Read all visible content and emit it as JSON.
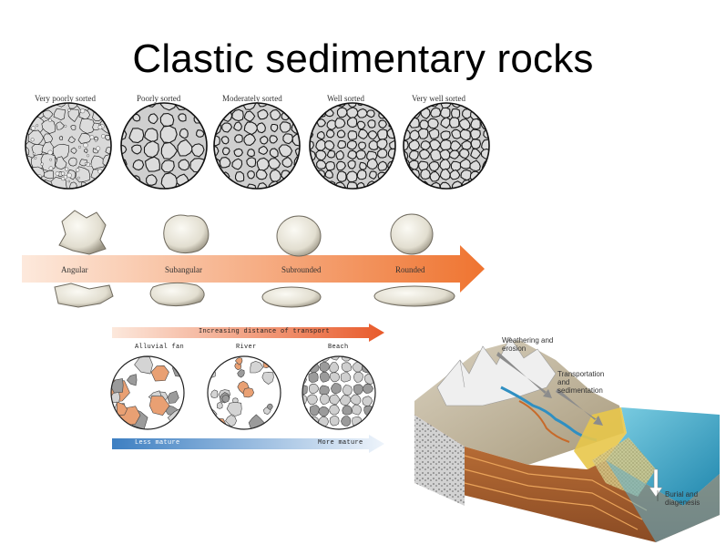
{
  "title": "Clastic sedimentary rocks",
  "sorting": {
    "labels": [
      "Very poorly sorted",
      "Poorly sorted",
      "Moderately sorted",
      "Well sorted",
      "Very well sorted"
    ]
  },
  "rounding": {
    "labels": [
      "Angular",
      "Subangular",
      "Subrounded",
      "Rounded"
    ]
  },
  "maturity": {
    "top_arrow": "Increasing distance of transport",
    "environments": [
      "Alluvial fan",
      "River",
      "Beach"
    ],
    "bottom_left": "Less mature",
    "bottom_right": "More mature"
  },
  "block_diagram": {
    "weathering": "Weathering and erosion",
    "transportation": "Transportation and sedimentation",
    "burial": "Burial and diagenesis"
  },
  "colors": {
    "orange_arrow": "#ee7a3a",
    "blue_arrow": "#4a86c8",
    "grain_fill": "#ffffff",
    "matrix_fill": "#c9c9c9",
    "ocean": "#3fa7c9"
  }
}
